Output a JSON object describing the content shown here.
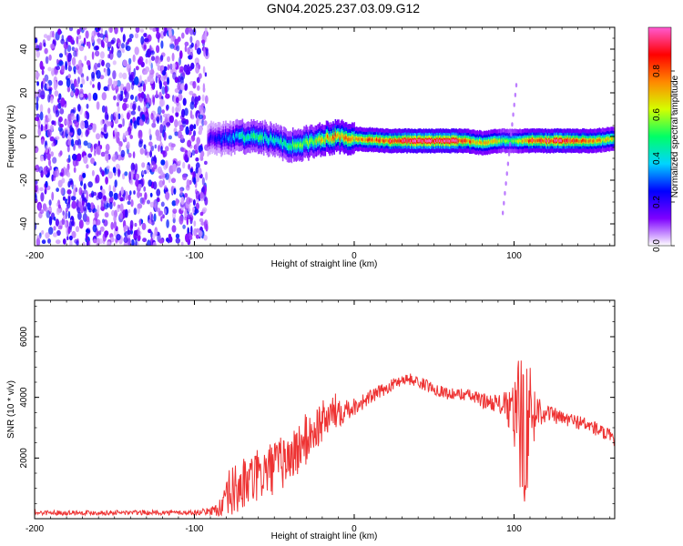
{
  "title": "GN04.2025.237.03.09.G12",
  "chart_data": [
    {
      "type": "heatmap",
      "xlabel": "Height of straight line (km)",
      "ylabel": "Frequency (Hz)",
      "xlim": [
        -200,
        163
      ],
      "ylim": [
        -50,
        50
      ],
      "x_ticks": [
        -200,
        -100,
        0,
        100
      ],
      "y_ticks": [
        -40,
        -20,
        0,
        20,
        40
      ],
      "colorbar": {
        "label": "Normalized spectral amplitude",
        "range": [
          0,
          1
        ],
        "ticks": [
          0.0,
          0.2,
          0.4,
          0.6,
          0.8
        ],
        "colors": [
          "#ffffff",
          "#7e00ff",
          "#0000ff",
          "#00d4ff",
          "#00ff66",
          "#d4ff00",
          "#ff8800",
          "#ff0000",
          "#ff5ad2"
        ]
      },
      "noise_region": {
        "x": [
          -200,
          -92
        ],
        "y": [
          -50,
          50
        ],
        "amplitude": 0.15
      },
      "ridge": [
        {
          "x": -92,
          "y": -1,
          "amplitude": 0.2
        },
        {
          "x": -80,
          "y": -1,
          "amplitude": 0.3
        },
        {
          "x": -70,
          "y": 0,
          "amplitude": 0.45
        },
        {
          "x": -60,
          "y": 0,
          "amplitude": 0.5
        },
        {
          "x": -50,
          "y": -2,
          "amplitude": 0.45
        },
        {
          "x": -40,
          "y": -4,
          "amplitude": 0.5
        },
        {
          "x": -30,
          "y": -3,
          "amplitude": 0.6
        },
        {
          "x": -20,
          "y": -1,
          "amplitude": 0.65
        },
        {
          "x": -12,
          "y": 0,
          "amplitude": 0.8
        },
        {
          "x": 0,
          "y": -1,
          "amplitude": 0.7
        },
        {
          "x": 20,
          "y": -2,
          "amplitude": 0.85
        },
        {
          "x": 40,
          "y": -2,
          "amplitude": 0.95
        },
        {
          "x": 60,
          "y": -2,
          "amplitude": 0.95
        },
        {
          "x": 70,
          "y": -2,
          "amplitude": 0.8
        },
        {
          "x": 80,
          "y": -3,
          "amplitude": 0.7
        },
        {
          "x": 90,
          "y": -2,
          "amplitude": 0.6
        },
        {
          "x": 100,
          "y": -2,
          "amplitude": 0.5
        },
        {
          "x": 110,
          "y": -2,
          "amplitude": 0.85
        },
        {
          "x": 130,
          "y": -2,
          "amplitude": 0.9
        },
        {
          "x": 150,
          "y": -2,
          "amplitude": 0.75
        },
        {
          "x": 163,
          "y": -1,
          "amplitude": 0.6
        }
      ]
    },
    {
      "type": "line",
      "xlabel": "Height of straight line (km)",
      "ylabel": "SNR (10 * v/v)",
      "xlim": [
        -200,
        163
      ],
      "ylim": [
        0,
        7200
      ],
      "x_ticks": [
        -200,
        -100,
        0,
        100
      ],
      "y_ticks": [
        2000,
        4000,
        6000
      ],
      "color": "#ee3333",
      "series": [
        {
          "x": [
            -200,
            -180,
            -160,
            -140,
            -120,
            -100,
            -90,
            -82,
            -78,
            -70,
            -60,
            -50,
            -40,
            -30,
            -20,
            -10,
            0,
            10,
            20,
            30,
            35,
            40,
            50,
            60,
            70,
            80,
            90,
            95,
            100,
            103,
            106,
            110,
            115,
            120,
            130,
            140,
            150,
            160,
            163
          ],
          "y": [
            200,
            200,
            200,
            200,
            200,
            200,
            250,
            400,
            800,
            1100,
            1400,
            1700,
            2000,
            2600,
            3200,
            3600,
            3700,
            4000,
            4300,
            4600,
            4600,
            4500,
            4300,
            4100,
            4100,
            3900,
            3800,
            3700,
            3400,
            3200,
            3000,
            3300,
            3600,
            3500,
            3300,
            3200,
            3000,
            2700,
            2500
          ],
          "spread": [
            80,
            80,
            80,
            80,
            80,
            80,
            120,
            400,
            900,
            900,
            900,
            900,
            900,
            900,
            700,
            600,
            300,
            250,
            200,
            200,
            200,
            200,
            200,
            200,
            200,
            250,
            300,
            500,
            1200,
            2200,
            2800,
            1800,
            600,
            300,
            250,
            250,
            250,
            250,
            200
          ]
        }
      ]
    }
  ]
}
